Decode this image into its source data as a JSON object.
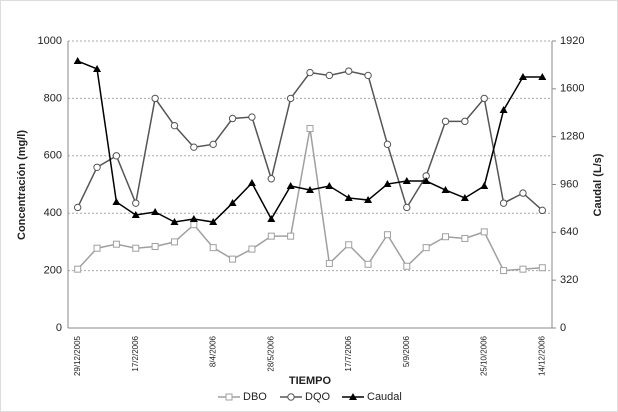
{
  "chart_data": {
    "type": "line",
    "y_label": "Concentración (mg/l)",
    "y2_label": "Caudal (L/s)",
    "x_label": "TIEMPO",
    "categories": [
      "29/12/2005",
      null,
      null,
      "17/2/2006",
      null,
      null,
      null,
      "8/4/2006",
      null,
      null,
      "28/5/2006",
      null,
      null,
      null,
      "17/7/2006",
      null,
      null,
      "5/9/2006",
      null,
      null,
      null,
      "25/10/2006",
      null,
      null,
      "14/12/2006"
    ],
    "series": [
      {
        "name": "DBO",
        "color": "#a0a0a0",
        "marker": "square",
        "values": [
          205,
          278,
          292,
          278,
          284,
          300,
          360,
          280,
          240,
          275,
          320,
          320,
          695,
          225,
          290,
          222,
          325,
          215,
          280,
          318,
          312,
          335,
          200,
          205,
          210
        ]
      },
      {
        "name": "DQO",
        "color": "#555555",
        "marker": "circle",
        "values": [
          420,
          560,
          600,
          435,
          800,
          705,
          630,
          640,
          730,
          735,
          520,
          800,
          890,
          880,
          895,
          880,
          640,
          420,
          530,
          720,
          720,
          800,
          435,
          470,
          410
        ]
      },
      {
        "name": "Caudal",
        "color": "#000000",
        "marker": "triangle",
        "axis": "y2",
        "values": [
          1786,
          1733,
          843,
          756,
          776,
          709,
          729,
          709,
          836,
          970,
          729,
          950,
          923,
          950,
          870,
          856,
          963,
          983,
          983,
          923,
          870,
          950,
          1458,
          1679,
          1679
        ]
      }
    ],
    "ylim": [
      0,
      1000
    ],
    "yticks": [
      0,
      200,
      400,
      600,
      800,
      1000
    ],
    "y2lim": [
      0,
      1920
    ],
    "y2ticks": [
      0,
      320,
      640,
      960,
      1280,
      1600,
      1920
    ],
    "grid": true,
    "legend": "bottom"
  }
}
